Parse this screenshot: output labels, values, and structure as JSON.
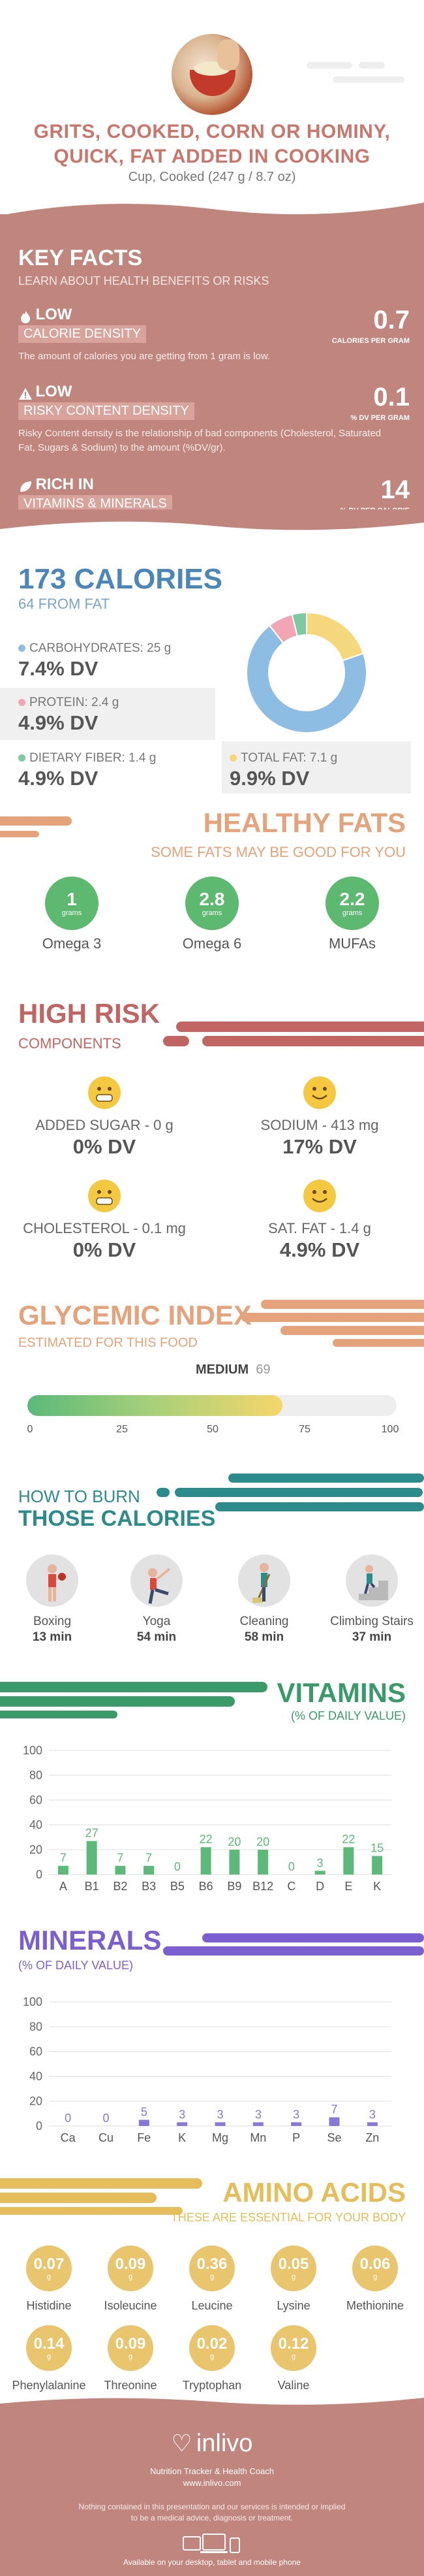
{
  "header": {
    "title_line1": "GRITS, COOKED, CORN OR HOMINY,",
    "title_line2": "QUICK, FAT ADDED IN COOKING",
    "serving": "Cup, Cooked (247 g / 8.7 oz)"
  },
  "key_facts": {
    "title": "KEY FACTS",
    "subtitle": "LEARN ABOUT HEALTH BENEFITS OR RISKS",
    "calorie_density": {
      "level": "LOW",
      "label": "CALORIE DENSITY",
      "value": "0.7",
      "unit": "CALORIES PER GRAM",
      "description": "The amount of calories you are getting from 1 gram is low."
    },
    "risky_density": {
      "level": "LOW",
      "label": "RISKY CONTENT DENSITY",
      "value": "0.1",
      "unit": "% DV PER GRAM",
      "description": "Risky Content density is the relationship of bad components (Cholesterol, Saturated Fat, Sugars & Sodium) to the amount (%DV/gr)."
    },
    "vitamins_minerals": {
      "level": "RICH  IN",
      "label": "VITAMINS & MINERALS",
      "value": "14",
      "unit": "% DV PER CALORIE"
    }
  },
  "calories": {
    "title": "173 CALORIES",
    "subtitle": "64 FROM FAT",
    "carbs_label": "CARBOHYDRATES: 25 g",
    "carbs_dv": "7.4% DV",
    "protein_label": "PROTEIN: 2.4 g",
    "protein_dv": "4.9% DV",
    "fiber_label": "DIETARY FIBER: 1.4 g",
    "fiber_dv": "4.9% DV",
    "fat_label": "TOTAL FAT: 7.1 g",
    "fat_dv": "9.9% DV",
    "colors": {
      "carbs": "#8dbde3",
      "protein": "#f2a5b5",
      "fiber": "#7cc9a3",
      "fat": "#f5d77e"
    },
    "donut_grams": {
      "carbs": 25,
      "protein": 2.4,
      "fiber": 1.4,
      "fat": 7.1
    }
  },
  "healthy_fats": {
    "title": "HEALTHY FATS",
    "subtitle": "SOME FATS MAY BE GOOD FOR YOU",
    "items": [
      {
        "value": "1",
        "unit": "grams",
        "name": "Omega 3"
      },
      {
        "value": "2.8",
        "unit": "grams",
        "name": "Omega 6"
      },
      {
        "value": "2.2",
        "unit": "grams",
        "name": "MUFAs"
      }
    ]
  },
  "high_risk": {
    "title": "HIGH RISK",
    "subtitle": "COMPONENTS",
    "items": [
      {
        "name": "ADDED SUGAR - 0 g",
        "dv": "0% DV"
      },
      {
        "name": "SODIUM - 413 mg",
        "dv": "17% DV"
      },
      {
        "name": "CHOLESTEROL - 0.1 mg",
        "dv": "0% DV"
      },
      {
        "name": "SAT. FAT - 1.4 g",
        "dv": "4.9% DV"
      }
    ]
  },
  "glycemic": {
    "title": "GLYCEMIC INDEX",
    "subtitle": "ESTIMATED FOR THIS FOOD",
    "level": "MEDIUM",
    "value": "69",
    "value_num": 69,
    "ticks": [
      "0",
      "25",
      "50",
      "75",
      "100"
    ]
  },
  "burn": {
    "title1": "HOW TO BURN",
    "title2": "THOSE CALORIES",
    "items": [
      {
        "name": "Boxing",
        "minutes": "13 min"
      },
      {
        "name": "Yoga",
        "minutes": "54 min"
      },
      {
        "name": "Cleaning",
        "minutes": "58 min"
      },
      {
        "name": "Climbing Stairs",
        "minutes": "37 min"
      }
    ]
  },
  "vitamins": {
    "title": "VITAMINS",
    "subtitle": "(% OF DAILY VALUE)"
  },
  "minerals": {
    "title": "MINERALS",
    "subtitle": "(% OF DAILY VALUE)"
  },
  "chart_data": [
    {
      "type": "bar",
      "categories": [
        "A",
        "B1",
        "B2",
        "B3",
        "B5",
        "B6",
        "B9",
        "B12",
        "C",
        "D",
        "E",
        "K"
      ],
      "values": [
        7,
        27,
        7,
        7,
        0,
        22,
        20,
        20,
        0,
        3,
        22,
        15
      ],
      "ylim": [
        0,
        100
      ],
      "yticks": [
        0,
        20,
        40,
        60,
        80,
        100
      ],
      "color": "#5cb97a"
    },
    {
      "type": "bar",
      "categories": [
        "Ca",
        "Cu",
        "Fe",
        "K",
        "Mg",
        "Mn",
        "P",
        "Se",
        "Zn"
      ],
      "values": [
        0,
        0,
        5,
        3,
        3,
        3,
        3,
        7,
        3
      ],
      "ylim": [
        0,
        100
      ],
      "yticks": [
        0,
        20,
        40,
        60,
        80,
        100
      ],
      "color": "#8a78d8"
    }
  ],
  "amino_acids": {
    "title": "AMINO ACIDS",
    "subtitle": "THESE ARE ESSENTIAL FOR YOUR BODY",
    "items": [
      {
        "value": "0.07",
        "unit": "g",
        "name": "Histidine"
      },
      {
        "value": "0.09",
        "unit": "g",
        "name": "Isoleucine"
      },
      {
        "value": "0.36",
        "unit": "g",
        "name": "Leucine"
      },
      {
        "value": "0.05",
        "unit": "g",
        "name": "Lysine"
      },
      {
        "value": "0.06",
        "unit": "g",
        "name": "Methionine"
      },
      {
        "value": "0.14",
        "unit": "g",
        "name": "Phenylalanine"
      },
      {
        "value": "0.09",
        "unit": "g",
        "name": "Threonine"
      },
      {
        "value": "0.02",
        "unit": "g",
        "name": "Tryptophan"
      },
      {
        "value": "0.12",
        "unit": "g",
        "name": "Valine"
      }
    ]
  },
  "footer": {
    "logo": "inlivo",
    "tagline": "Nutrition Tracker & Health Coach",
    "url": "www.inlivo.com",
    "disclaimer": "Nothing contained in this presentation and our services is intended or implied to be a medical advice, diagnosis or treatment.",
    "available": "Available on your desktop, tablet and mobile phone"
  }
}
